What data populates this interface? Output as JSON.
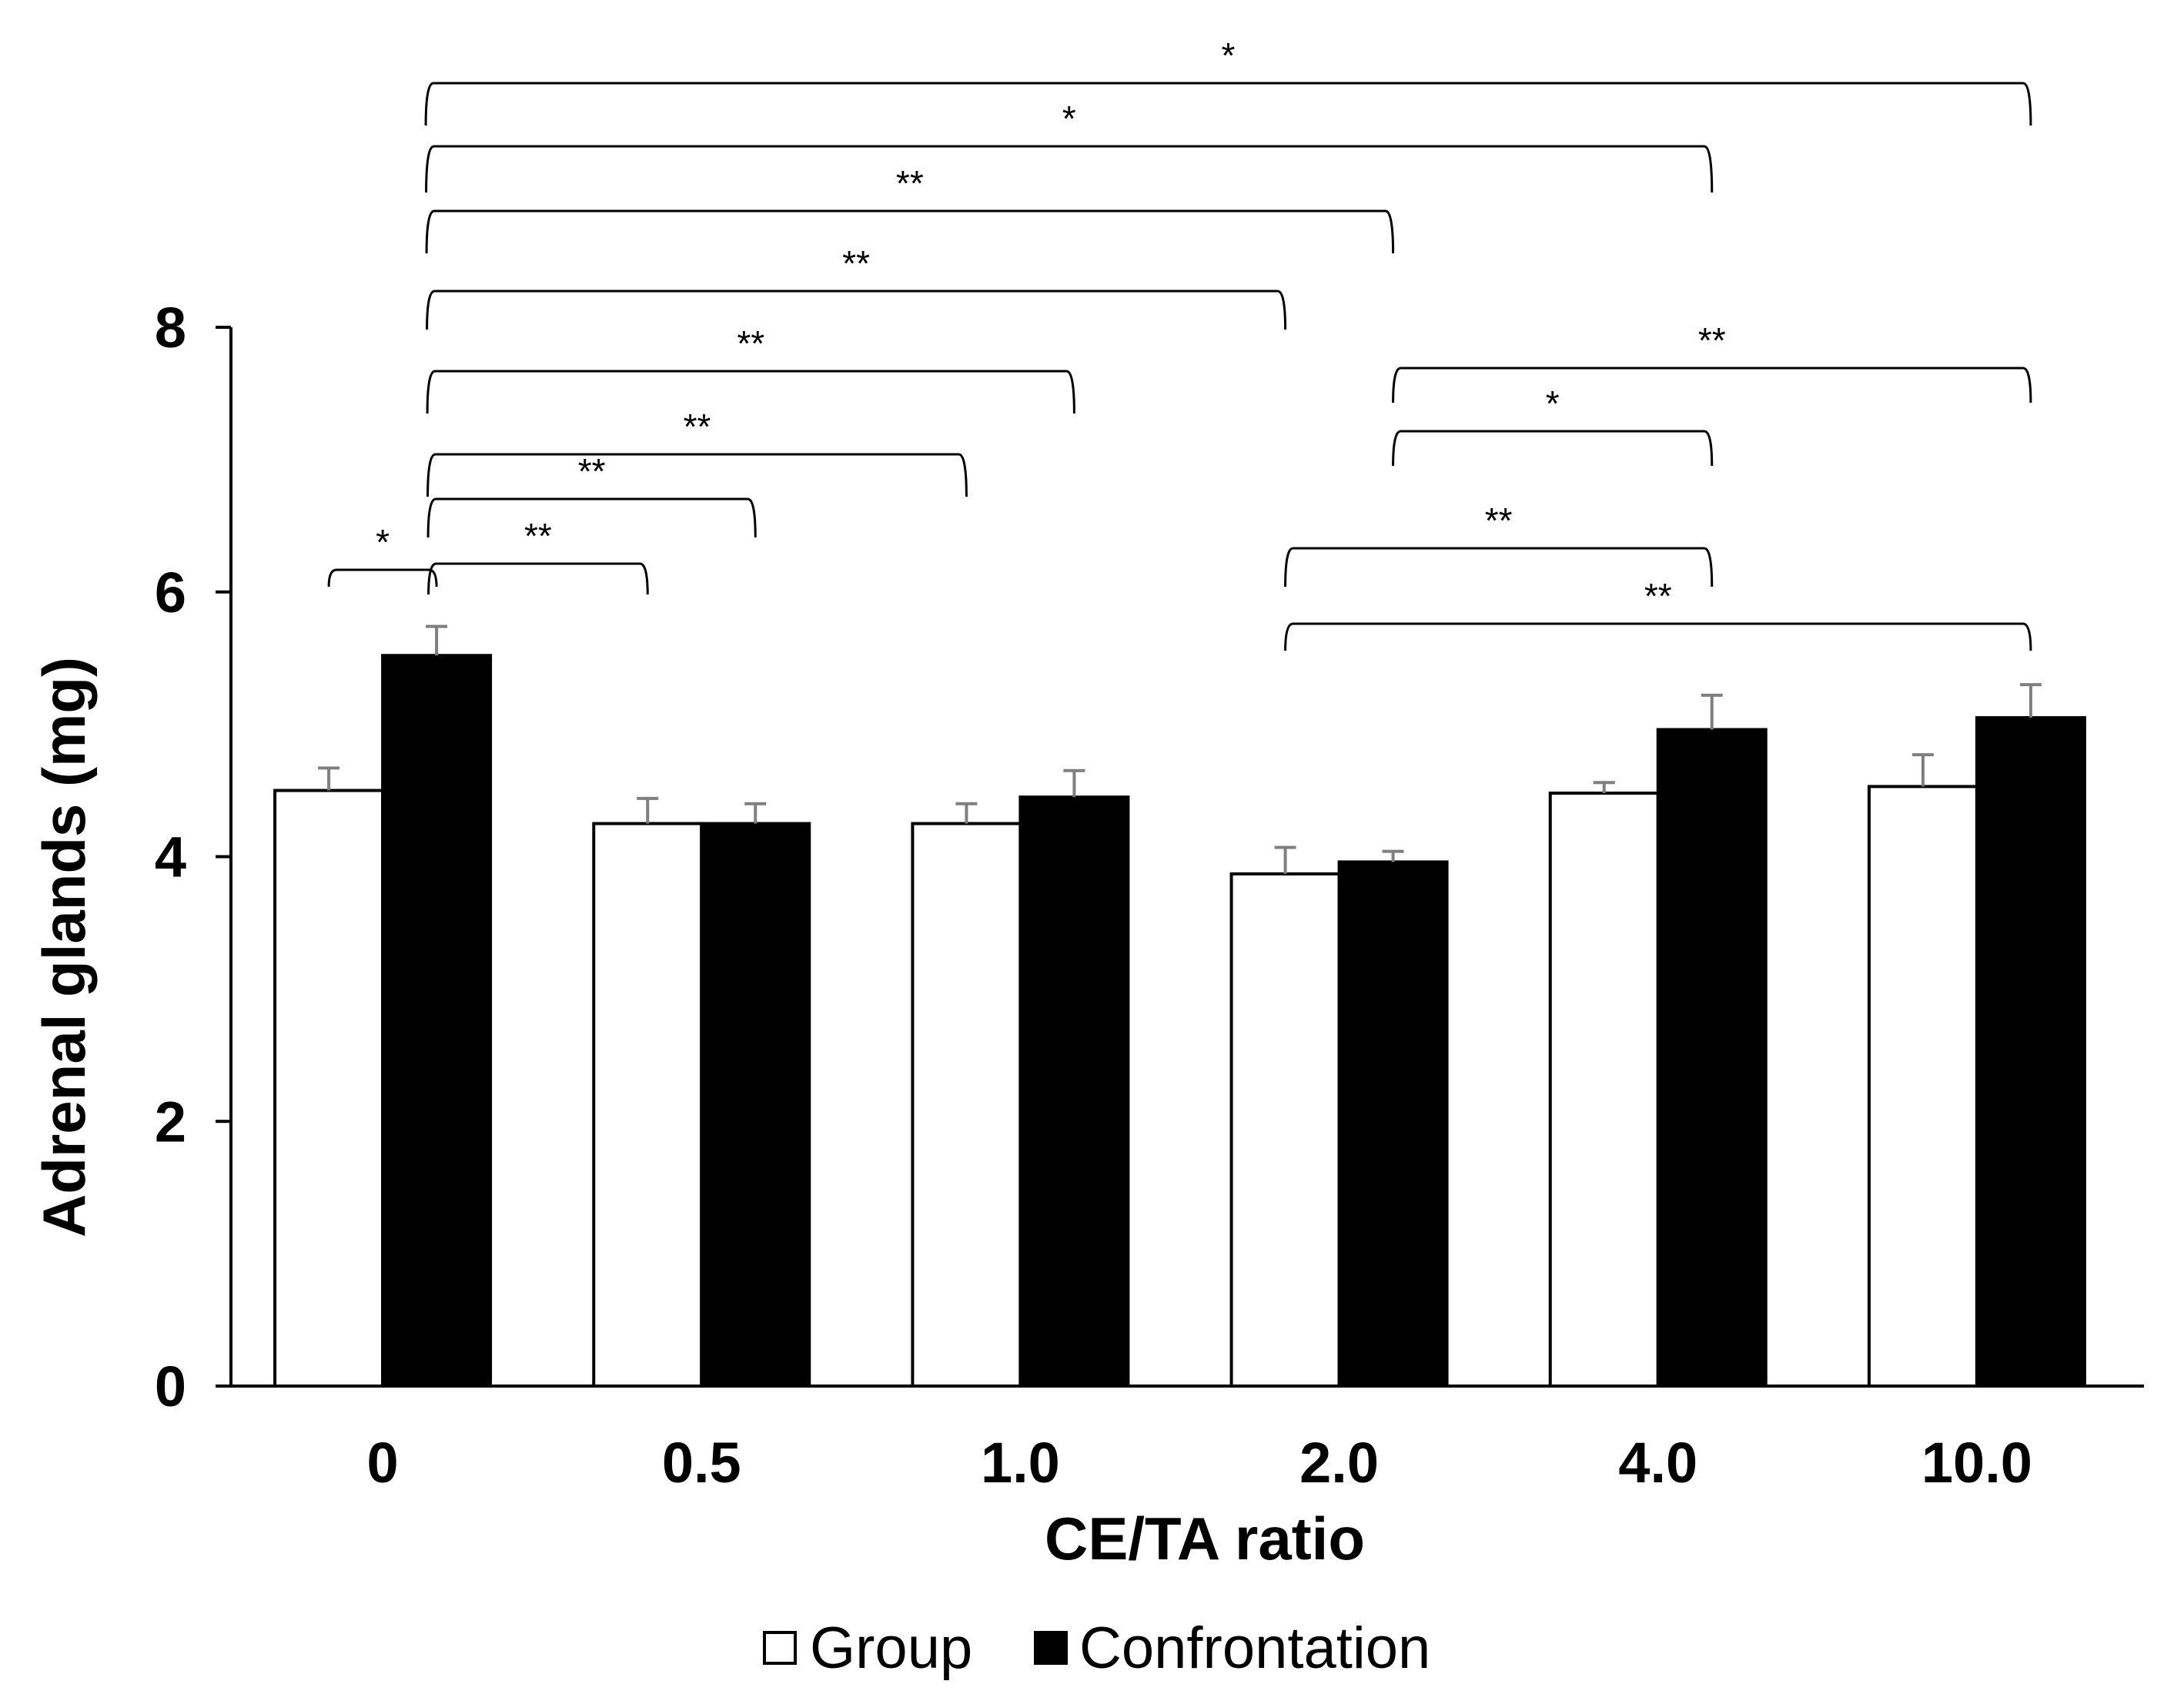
{
  "chart_data": {
    "type": "bar",
    "title": "",
    "xlabel": "CE/TA ratio",
    "ylabel": "Adrenal glands (mg)",
    "ylim": [
      0,
      8
    ],
    "yticks": [
      "0",
      "2",
      "4",
      "6",
      "8"
    ],
    "categories": [
      "0",
      "0.5",
      "1.0",
      "2.0",
      "4.0",
      "10.0"
    ],
    "series": [
      {
        "name": "Group",
        "color": "#ffffff",
        "values": [
          4.5,
          4.25,
          4.25,
          3.87,
          4.48,
          4.53
        ],
        "errors": [
          0.17,
          0.19,
          0.15,
          0.2,
          0.08,
          0.24
        ]
      },
      {
        "name": "Confrontation",
        "color": "#000000",
        "values": [
          5.52,
          4.25,
          4.45,
          3.96,
          4.96,
          5.05
        ],
        "errors": [
          0.22,
          0.15,
          0.2,
          0.08,
          0.26,
          0.25
        ]
      }
    ],
    "legend": {
      "position": "bottom",
      "items": [
        "Group",
        "Confrontation"
      ]
    },
    "significance": [
      {
        "from": [
          0,
          0
        ],
        "to": [
          0,
          1
        ],
        "label": "*"
      },
      {
        "from": [
          0,
          1
        ],
        "to": [
          1,
          0
        ],
        "label": "**"
      },
      {
        "from": [
          0,
          1
        ],
        "to": [
          1,
          1
        ],
        "label": "**"
      },
      {
        "from": [
          0,
          1
        ],
        "to": [
          2,
          0
        ],
        "label": "**"
      },
      {
        "from": [
          0,
          1
        ],
        "to": [
          2,
          1
        ],
        "label": "**"
      },
      {
        "from": [
          0,
          1
        ],
        "to": [
          3,
          0
        ],
        "label": "**"
      },
      {
        "from": [
          0,
          1
        ],
        "to": [
          3,
          1
        ],
        "label": "**"
      },
      {
        "from": [
          0,
          1
        ],
        "to": [
          4,
          1
        ],
        "label": "*"
      },
      {
        "from": [
          0,
          1
        ],
        "to": [
          5,
          1
        ],
        "label": "*"
      },
      {
        "from": [
          3,
          0
        ],
        "to": [
          4,
          1
        ],
        "label": "**"
      },
      {
        "from": [
          3,
          0
        ],
        "to": [
          5,
          1
        ],
        "label": "**"
      },
      {
        "from": [
          3,
          1
        ],
        "to": [
          4,
          1
        ],
        "label": "*"
      },
      {
        "from": [
          3,
          1
        ],
        "to": [
          5,
          1
        ],
        "label": "**"
      }
    ]
  }
}
